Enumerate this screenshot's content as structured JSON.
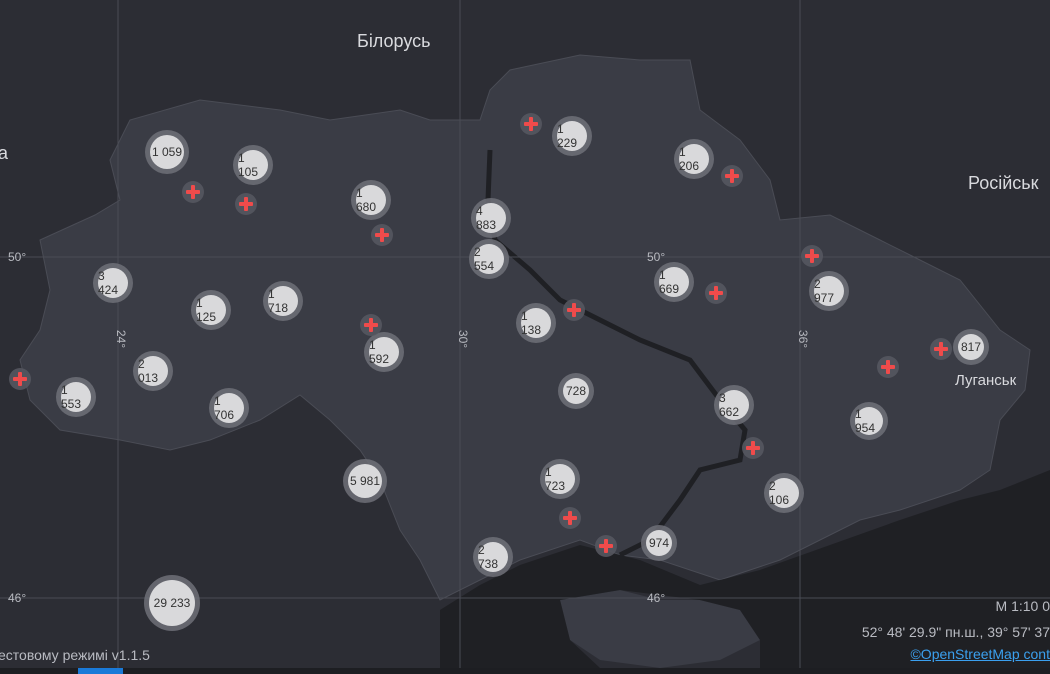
{
  "map": {
    "labels": {
      "belarus": "Білорусь",
      "russia": "Російськ",
      "left_cut": "а",
      "luhansk": "Луганськ"
    },
    "grid_labels": {
      "lat50a": "50°",
      "lat50b": "50°",
      "lat46a": "46°",
      "lat46b": "46°",
      "lon24": "24°",
      "lon30": "30°",
      "lon36": "36°"
    },
    "clusters": [
      "1 059",
      "1 105",
      "1 680",
      "4 883",
      "2 554",
      "1 229",
      "1 206",
      "3 424",
      "1 125",
      "1 718",
      "1 592",
      "1 138",
      "1 669",
      "2 977",
      "817",
      "2 013",
      "1 553",
      "1 706",
      "728",
      "3 662",
      "1 954",
      "5 981",
      "1 723",
      "2 106",
      "974",
      "2 738",
      "29 233"
    ],
    "hospital_marker_icon": "red-cross-icon",
    "hospital_marker_count": 15
  },
  "footer": {
    "scale": "М 1:10 0",
    "coords": "52° 48' 29.9\" пн.ш., 39° 57' 37",
    "attribution": "©OpenStreetMap cont",
    "mode": "естовому режимі v1.1.5"
  },
  "colors": {
    "background": "#2c2d34",
    "land": "#3a3c45",
    "water": "#1f2024",
    "cluster": "#d9d9db",
    "cross": "#ef4b4b",
    "link": "#3ba0ef"
  }
}
